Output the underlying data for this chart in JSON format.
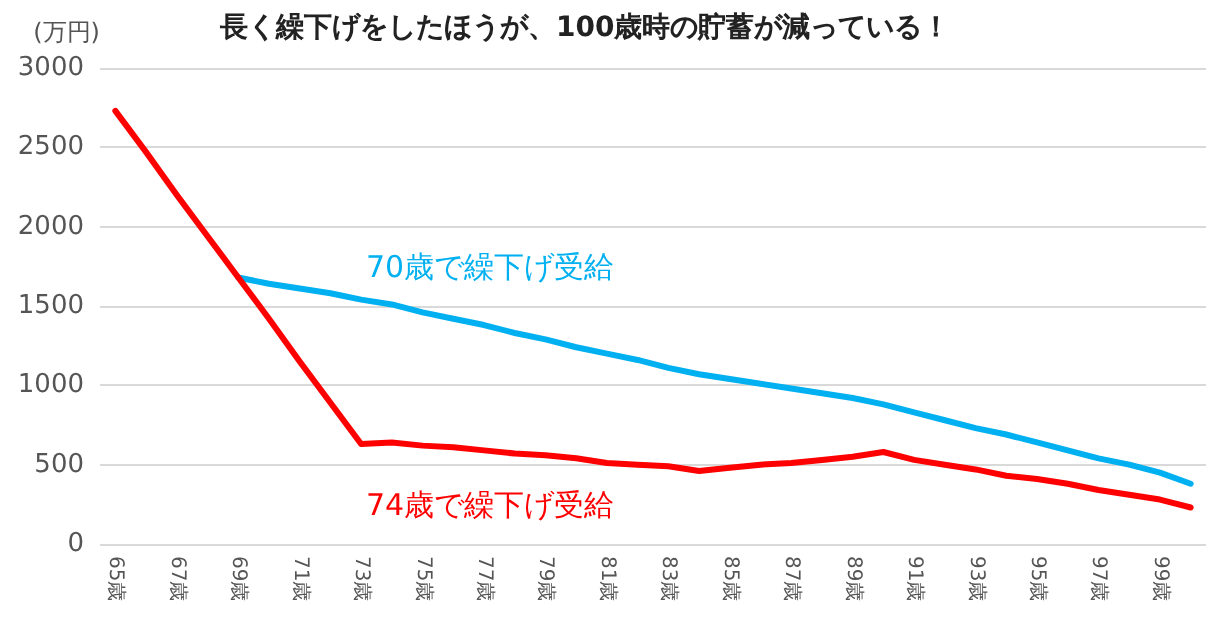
{
  "chart_data": {
    "type": "line",
    "title": "長く繰下げをしたほうが、100歳時の貯蓄が減っている！",
    "ylabel": "(万円)",
    "categories": [
      "65歳",
      null,
      "67歳",
      null,
      "69歳",
      null,
      "71歳",
      null,
      "73歳",
      null,
      "75歳",
      null,
      "77歳",
      null,
      "79歳",
      null,
      "81歳",
      null,
      "83歳",
      null,
      "85歳",
      null,
      "87歳",
      null,
      "89歳",
      null,
      "91歳",
      null,
      "93歳",
      null,
      "95歳",
      null,
      "97歳",
      null,
      "99歳",
      null
    ],
    "series": [
      {
        "name": "70歳で繰下げ受給",
        "color": "#00b0f0",
        "values": [
          null,
          null,
          null,
          null,
          1680,
          1640,
          1610,
          1580,
          1540,
          1510,
          1460,
          1420,
          1380,
          1330,
          1290,
          1240,
          1200,
          1160,
          1110,
          1070,
          1040,
          1010,
          980,
          950,
          920,
          880,
          830,
          780,
          730,
          690,
          640,
          590,
          540,
          500,
          450,
          380
        ]
      },
      {
        "name": "74歳で繰下げ受給",
        "color": "#ff0000",
        "values": [
          2730,
          2470,
          2200,
          1940,
          1680,
          1420,
          1150,
          890,
          630,
          640,
          620,
          610,
          590,
          570,
          560,
          540,
          510,
          500,
          490,
          460,
          480,
          500,
          510,
          530,
          550,
          580,
          530,
          500,
          470,
          430,
          410,
          380,
          340,
          310,
          280,
          230
        ]
      }
    ],
    "ylim": [
      0,
      3000
    ],
    "yticks": [
      0,
      500,
      1000,
      1500,
      2000,
      2500,
      3000
    ],
    "grid": "y",
    "marker": "none",
    "line_style": "solid"
  }
}
